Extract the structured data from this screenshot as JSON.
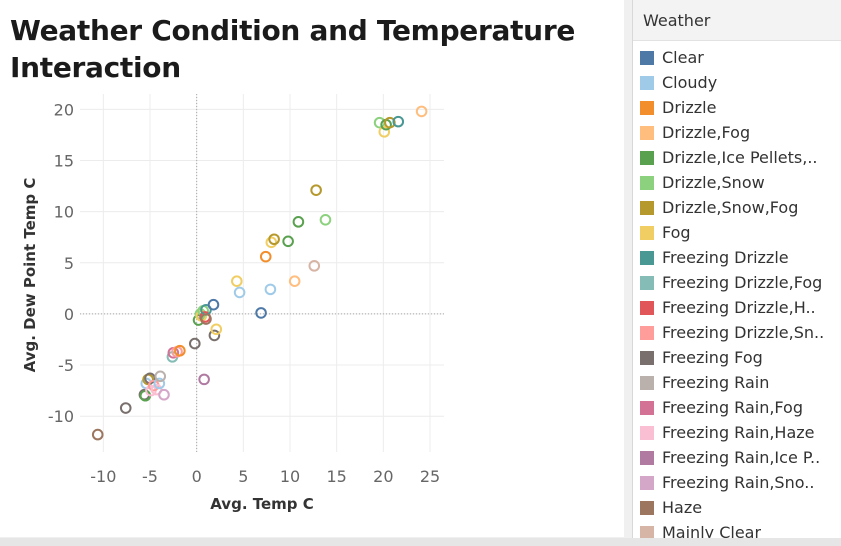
{
  "chart_data": {
    "type": "scatter",
    "title": "Weather Condition and Temperature Interaction",
    "xlabel": "Avg. Temp C",
    "ylabel": "Avg. Dew Point Temp C",
    "xlim": [
      -12.5,
      26.5
    ],
    "ylim": [
      -13.5,
      21.5
    ],
    "xticks": [
      -10,
      -5,
      0,
      5,
      10,
      15,
      20,
      25
    ],
    "yticks": [
      -10,
      -5,
      0,
      5,
      10,
      15,
      20
    ],
    "grid": true,
    "marker": "hollow-circle",
    "legend_position": "right",
    "points": [
      {
        "x": -10.6,
        "y": -11.8,
        "series": "Haze"
      },
      {
        "x": -7.6,
        "y": -9.2,
        "series": "Freezing Fog"
      },
      {
        "x": -5.6,
        "y": -7.9,
        "series": "Freezing Fog"
      },
      {
        "x": -5.5,
        "y": -8.0,
        "series": "Drizzle,Ice Pellets,.."
      },
      {
        "x": -5.4,
        "y": -6.8,
        "series": "Cloudy"
      },
      {
        "x": -5.2,
        "y": -6.4,
        "series": "Drizzle,Snow,Fog"
      },
      {
        "x": -5.0,
        "y": -6.3,
        "series": "Freezing Fog"
      },
      {
        "x": -4.9,
        "y": -7.5,
        "series": "Freezing Rain,Haze"
      },
      {
        "x": -4.6,
        "y": -7.0,
        "series": "Freezing Drizzle,Sn.."
      },
      {
        "x": -4.3,
        "y": -7.4,
        "series": "Freezing Rain,Haze"
      },
      {
        "x": -4.0,
        "y": -6.8,
        "series": "Cloudy"
      },
      {
        "x": -3.9,
        "y": -6.1,
        "series": "Freezing Rain"
      },
      {
        "x": -3.5,
        "y": -7.9,
        "series": "Freezing Rain,Sno.."
      },
      {
        "x": -2.6,
        "y": -4.2,
        "series": "Freezing Drizzle,Fog"
      },
      {
        "x": -2.5,
        "y": -3.8,
        "series": "Freezing Rain,Fog"
      },
      {
        "x": -2.1,
        "y": -3.7,
        "series": "Freezing Drizzle,Sn.."
      },
      {
        "x": -1.8,
        "y": -3.6,
        "series": "Drizzle"
      },
      {
        "x": -0.2,
        "y": -2.9,
        "series": "Freezing Fog"
      },
      {
        "x": 0.2,
        "y": -0.6,
        "series": "Drizzle,Ice Pellets,.."
      },
      {
        "x": 0.4,
        "y": 0.0,
        "series": "Drizzle,Snow"
      },
      {
        "x": 0.5,
        "y": -0.2,
        "series": "Fog"
      },
      {
        "x": 0.7,
        "y": 0.3,
        "series": "Drizzle,Snow"
      },
      {
        "x": 0.8,
        "y": -6.4,
        "series": "Freezing Rain,Ice P.."
      },
      {
        "x": 0.9,
        "y": -0.3,
        "series": "Freezing Drizzle,H.."
      },
      {
        "x": 1.0,
        "y": 0.4,
        "series": "Freezing Drizzle"
      },
      {
        "x": 1.0,
        "y": -0.5,
        "series": "Haze"
      },
      {
        "x": 1.8,
        "y": 0.9,
        "series": "Clear"
      },
      {
        "x": 1.9,
        "y": -2.1,
        "series": "Freezing Fog"
      },
      {
        "x": 2.1,
        "y": -1.5,
        "series": "Fog"
      },
      {
        "x": 4.3,
        "y": 3.2,
        "series": "Fog"
      },
      {
        "x": 4.6,
        "y": 2.1,
        "series": "Cloudy"
      },
      {
        "x": 6.9,
        "y": 0.1,
        "series": "Clear"
      },
      {
        "x": 7.4,
        "y": 5.6,
        "series": "Drizzle"
      },
      {
        "x": 7.9,
        "y": 2.4,
        "series": "Cloudy"
      },
      {
        "x": 8.0,
        "y": 7.0,
        "series": "Fog"
      },
      {
        "x": 8.3,
        "y": 7.3,
        "series": "Drizzle,Snow,Fog"
      },
      {
        "x": 9.8,
        "y": 7.1,
        "series": "Drizzle,Ice Pellets,.."
      },
      {
        "x": 10.5,
        "y": 3.2,
        "series": "Drizzle,Fog"
      },
      {
        "x": 10.9,
        "y": 9.0,
        "series": "Drizzle,Ice Pellets,.."
      },
      {
        "x": 12.6,
        "y": 4.7,
        "series": "Mainly Clear"
      },
      {
        "x": 12.8,
        "y": 12.1,
        "series": "Drizzle,Snow,Fog"
      },
      {
        "x": 13.8,
        "y": 9.2,
        "series": "Drizzle,Snow"
      },
      {
        "x": 19.6,
        "y": 18.7,
        "series": "Drizzle,Snow"
      },
      {
        "x": 20.1,
        "y": 17.8,
        "series": "Fog"
      },
      {
        "x": 20.3,
        "y": 18.5,
        "series": "Drizzle,Ice Pellets,.."
      },
      {
        "x": 20.7,
        "y": 18.7,
        "series": "Drizzle,Snow,Fog"
      },
      {
        "x": 21.6,
        "y": 18.8,
        "series": "Freezing Drizzle"
      },
      {
        "x": 24.1,
        "y": 19.8,
        "series": "Drizzle,Fog"
      }
    ]
  },
  "legend": {
    "header": "Weather",
    "items": [
      {
        "label": "Clear",
        "color": "#4e79a7"
      },
      {
        "label": "Cloudy",
        "color": "#a0cbe8"
      },
      {
        "label": "Drizzle",
        "color": "#f28e2b"
      },
      {
        "label": "Drizzle,Fog",
        "color": "#ffbe7d"
      },
      {
        "label": "Drizzle,Ice Pellets,..",
        "color": "#59a14f"
      },
      {
        "label": "Drizzle,Snow",
        "color": "#8cd17d"
      },
      {
        "label": "Drizzle,Snow,Fog",
        "color": "#b6992d"
      },
      {
        "label": "Fog",
        "color": "#f1ce63"
      },
      {
        "label": "Freezing Drizzle",
        "color": "#499894"
      },
      {
        "label": "Freezing Drizzle,Fog",
        "color": "#86bcb6"
      },
      {
        "label": "Freezing Drizzle,H..",
        "color": "#e15759"
      },
      {
        "label": "Freezing Drizzle,Sn..",
        "color": "#ff9d9a"
      },
      {
        "label": "Freezing Fog",
        "color": "#79706e"
      },
      {
        "label": "Freezing Rain",
        "color": "#bab0ac"
      },
      {
        "label": "Freezing Rain,Fog",
        "color": "#d37295"
      },
      {
        "label": "Freezing Rain,Haze",
        "color": "#fabfd2"
      },
      {
        "label": "Freezing Rain,Ice P..",
        "color": "#b07aa1"
      },
      {
        "label": "Freezing Rain,Sno..",
        "color": "#d4a6c8"
      },
      {
        "label": "Haze",
        "color": "#9d7660"
      },
      {
        "label": "Mainly Clear",
        "color": "#d7b5a6"
      }
    ]
  }
}
